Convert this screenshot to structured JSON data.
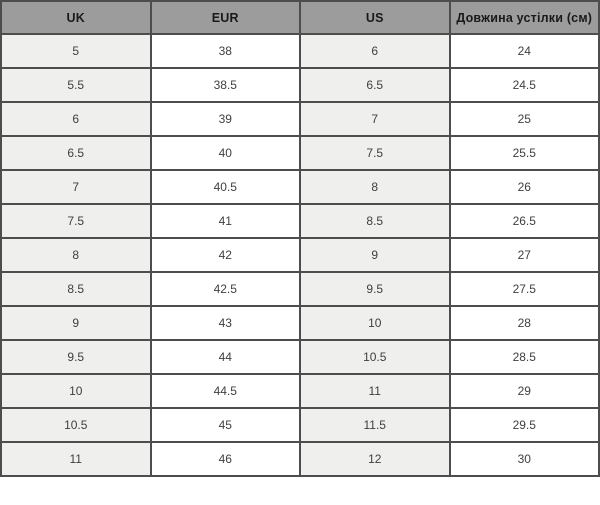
{
  "colors": {
    "header_bg": "#9c9c9c",
    "header_text": "#1a1a1a",
    "cell_text": "#3f3f3f",
    "shaded_cell_bg": "#efefee",
    "white_cell_bg": "#ffffff",
    "border": "#4d4d4d"
  },
  "table": {
    "columns": [
      "UK",
      "EUR",
      "US",
      "Довжина устілки (см)"
    ],
    "rows": [
      [
        "5",
        "38",
        "6",
        "24"
      ],
      [
        "5.5",
        "38.5",
        "6.5",
        "24.5"
      ],
      [
        "6",
        "39",
        "7",
        "25"
      ],
      [
        "6.5",
        "40",
        "7.5",
        "25.5"
      ],
      [
        "7",
        "40.5",
        "8",
        "26"
      ],
      [
        "7.5",
        "41",
        "8.5",
        "26.5"
      ],
      [
        "8",
        "42",
        "9",
        "27"
      ],
      [
        "8.5",
        "42.5",
        "9.5",
        "27.5"
      ],
      [
        "9",
        "43",
        "10",
        "28"
      ],
      [
        "9.5",
        "44",
        "10.5",
        "28.5"
      ],
      [
        "10",
        "44.5",
        "11",
        "29"
      ],
      [
        "10.5",
        "45",
        "11.5",
        "29.5"
      ],
      [
        "11",
        "46",
        "12",
        "30"
      ]
    ]
  }
}
